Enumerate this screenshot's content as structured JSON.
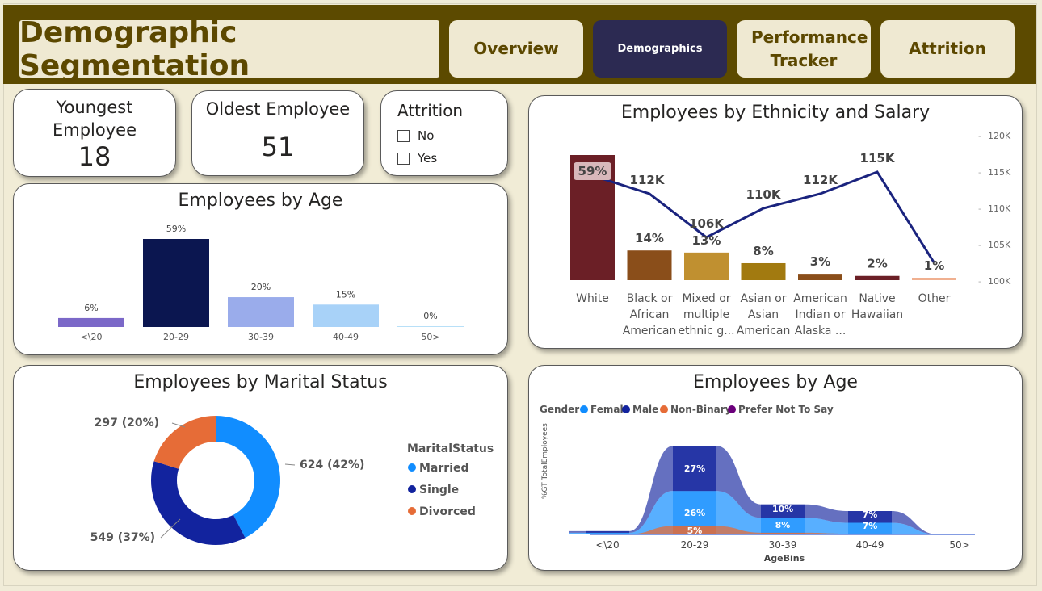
{
  "header": {
    "title": "Demographic Segmentation",
    "nav": [
      {
        "label": "Overview"
      },
      {
        "label": "Demographics"
      },
      {
        "label": "Performance Tracker"
      },
      {
        "label": "Attrition"
      }
    ]
  },
  "kpis": {
    "youngest": {
      "label": "Youngest Employee",
      "value": "18"
    },
    "oldest": {
      "label": "Oldest Employee",
      "value": "51"
    }
  },
  "attrition_slicer": {
    "title": "Attrition",
    "options": [
      "No",
      "Yes"
    ]
  },
  "age_chart": {
    "title": "Employees by Age",
    "chart_data": {
      "type": "bar",
      "categories": [
        "<\\20",
        "20-29",
        "30-39",
        "40-49",
        "50>"
      ],
      "values": [
        6,
        59,
        20,
        15,
        0
      ],
      "data_labels": [
        "6%",
        "59%",
        "20%",
        "15%",
        "0%"
      ],
      "colors": [
        "#7b68c8",
        "#0b1650",
        "#9aaceb",
        "#a8d2f8",
        "#b8e0f8"
      ]
    }
  },
  "ethnicity_chart": {
    "title": "Employees by Ethnicity and Salary",
    "chart_data": {
      "type": "bar",
      "categories": [
        "White",
        "Black or African American",
        "Mixed or multiple ethnic g...",
        "Asian or Asian American",
        "American Indian or Alaska ...",
        "Native Hawaiian",
        "Other"
      ],
      "category_lines": [
        [
          "White"
        ],
        [
          "Black or",
          "African",
          "American"
        ],
        [
          "Mixed or",
          "multiple",
          "ethnic g..."
        ],
        [
          "Asian or",
          "Asian",
          "American"
        ],
        [
          "American",
          "Indian or",
          "Alaska ..."
        ],
        [
          "Native",
          "Hawaiian"
        ],
        [
          "Other"
        ]
      ],
      "bar_values": [
        59,
        14,
        13,
        8,
        3,
        2,
        1
      ],
      "bar_labels": [
        "59%",
        "14%",
        "13%",
        "8%",
        "3%",
        "2%",
        "1%"
      ],
      "bar_colors": [
        "#6b1f26",
        "#8a4e1a",
        "#c09030",
        "#a27a10",
        "#8a4e1a",
        "#6b1f26",
        "#f0b090"
      ],
      "line_values": [
        114.5,
        112,
        106,
        110,
        112,
        115,
        102.5
      ],
      "line_labels": [
        "",
        "112K",
        "106K",
        "110K",
        "112K",
        "115K",
        ""
      ],
      "line_color": "#1a237e",
      "y2_ticks": [
        "120K",
        "115K",
        "110K",
        "105K",
        "100K"
      ],
      "y2lim": [
        100,
        120
      ]
    }
  },
  "marital_chart": {
    "title": "Employees by Marital Status",
    "chart_data": {
      "type": "pie",
      "categories": [
        "Married",
        "Single",
        "Divorced"
      ],
      "values": [
        624,
        549,
        297
      ],
      "percent": [
        42,
        37,
        20
      ],
      "data_labels": [
        "624 (42%)",
        "549 (37%)",
        "297 (20%)"
      ],
      "colors": [
        "#118dff",
        "#12239e",
        "#e66c37"
      ]
    },
    "legend_title": "MaritalStatus"
  },
  "gender_age_chart": {
    "title": "Employees by Age",
    "legend_title": "Gender",
    "y_label": "%GT TotalEmployees",
    "x_label": "AgeBins",
    "chart_data": {
      "type": "area",
      "categories": [
        "<\\20",
        "20-29",
        "30-39",
        "40-49",
        "50>"
      ],
      "series": [
        {
          "name": "Female",
          "color": "#118dff",
          "values": [
            1,
            26,
            10,
            7,
            0
          ]
        },
        {
          "name": "Male",
          "color": "#12239e",
          "values": [
            1,
            27,
            8,
            7,
            0
          ]
        },
        {
          "name": "Non-Binary",
          "color": "#e66c37",
          "values": [
            0.2,
            5,
            1,
            0.5,
            0
          ]
        },
        {
          "name": "Prefer Not To Say",
          "color": "#6b007b",
          "values": [
            0.1,
            0.5,
            0.3,
            0.3,
            0
          ]
        }
      ],
      "visible_labels": [
        {
          "series": "Male",
          "category": "20-29",
          "text": "27%"
        },
        {
          "series": "Female",
          "category": "20-29",
          "text": "26%"
        },
        {
          "series": "Non-Binary",
          "category": "20-29",
          "text": "5%"
        },
        {
          "series": "Female",
          "category": "30-39",
          "text": "10%"
        },
        {
          "series": "Male",
          "category": "30-39",
          "text": "8%"
        },
        {
          "series": "Male",
          "category": "40-49",
          "text": "7%"
        },
        {
          "series": "Female",
          "category": "40-49",
          "text": "7%"
        }
      ]
    }
  }
}
